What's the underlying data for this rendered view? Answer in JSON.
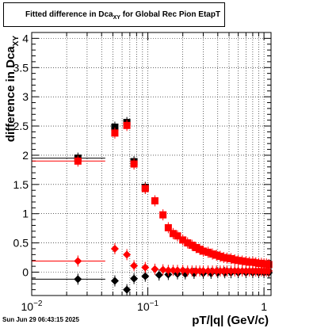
{
  "chart_data": {
    "type": "scatter",
    "title": "Fitted difference in Dca",
    "title_sub": "XY",
    "title_suffix": "for Global Rec Pion EtapT",
    "xlabel": "pT/|q| (GeV/c)",
    "ylabel": "difference in Dca",
    "ylabel_sub": "XY",
    "xscale": "log",
    "xlim": [
      0.01,
      1.15
    ],
    "ylim": [
      -0.4,
      4.1
    ],
    "grid": true,
    "yticks": [
      "0",
      "0.5",
      "1",
      "1.5",
      "2",
      "2.5",
      "3",
      "3.5",
      "4"
    ],
    "xticks": [
      {
        "base": "10",
        "exp": "−2"
      },
      {
        "base": "10",
        "exp": "−1"
      },
      {
        "base": "1",
        "exp": ""
      }
    ],
    "series": [
      {
        "color": "#000000",
        "marker": "square",
        "points": [
          {
            "x": 0.025,
            "y": 1.95,
            "xerr": [
              0.01,
              0.043
            ]
          },
          {
            "x": 0.052,
            "y": 2.48
          },
          {
            "x": 0.066,
            "y": 2.56
          },
          {
            "x": 0.076,
            "y": 1.89
          },
          {
            "x": 0.095,
            "y": 1.45
          }
        ]
      },
      {
        "color": "#ff0000",
        "marker": "square",
        "points": [
          {
            "x": 0.025,
            "y": 1.9,
            "xerr": [
              0.01,
              0.043
            ]
          },
          {
            "x": 0.052,
            "y": 2.38
          },
          {
            "x": 0.066,
            "y": 2.51
          },
          {
            "x": 0.076,
            "y": 1.85
          },
          {
            "x": 0.095,
            "y": 1.43
          },
          {
            "x": 0.115,
            "y": 1.22
          },
          {
            "x": 0.135,
            "y": 0.98
          },
          {
            "x": 0.15,
            "y": 0.76
          },
          {
            "x": 0.165,
            "y": 0.66
          },
          {
            "x": 0.18,
            "y": 0.62
          },
          {
            "x": 0.2,
            "y": 0.55
          },
          {
            "x": 0.22,
            "y": 0.5
          },
          {
            "x": 0.24,
            "y": 0.46
          },
          {
            "x": 0.26,
            "y": 0.42
          },
          {
            "x": 0.28,
            "y": 0.39
          },
          {
            "x": 0.3,
            "y": 0.36
          },
          {
            "x": 0.33,
            "y": 0.34
          },
          {
            "x": 0.36,
            "y": 0.31
          },
          {
            "x": 0.39,
            "y": 0.29
          },
          {
            "x": 0.42,
            "y": 0.27
          },
          {
            "x": 0.45,
            "y": 0.25
          },
          {
            "x": 0.48,
            "y": 0.24
          },
          {
            "x": 0.52,
            "y": 0.23
          },
          {
            "x": 0.56,
            "y": 0.21
          },
          {
            "x": 0.6,
            "y": 0.2
          },
          {
            "x": 0.65,
            "y": 0.19
          },
          {
            "x": 0.7,
            "y": 0.18
          },
          {
            "x": 0.75,
            "y": 0.17
          },
          {
            "x": 0.8,
            "y": 0.17
          },
          {
            "x": 0.85,
            "y": 0.16
          },
          {
            "x": 0.9,
            "y": 0.15
          },
          {
            "x": 0.95,
            "y": 0.15
          },
          {
            "x": 1.0,
            "y": 0.14
          },
          {
            "x": 1.05,
            "y": 0.14
          },
          {
            "x": 1.1,
            "y": 0.13
          }
        ]
      },
      {
        "color": "#000000",
        "marker": "diamond",
        "points": [
          {
            "x": 0.025,
            "y": -0.12,
            "xerr": [
              0.01,
              0.043
            ]
          },
          {
            "x": 0.052,
            "y": -0.15
          },
          {
            "x": 0.066,
            "y": -0.3
          },
          {
            "x": 0.076,
            "y": -0.11
          },
          {
            "x": 0.095,
            "y": -0.07
          },
          {
            "x": 0.125,
            "y": -0.05
          },
          {
            "x": 0.15,
            "y": -0.04
          },
          {
            "x": 0.18,
            "y": -0.03
          },
          {
            "x": 0.21,
            "y": -0.03
          },
          {
            "x": 0.25,
            "y": -0.02
          },
          {
            "x": 0.3,
            "y": -0.02
          },
          {
            "x": 0.35,
            "y": -0.02
          },
          {
            "x": 0.4,
            "y": -0.01
          },
          {
            "x": 0.46,
            "y": -0.01
          },
          {
            "x": 0.52,
            "y": -0.01
          },
          {
            "x": 0.6,
            "y": -0.01
          },
          {
            "x": 0.7,
            "y": -0.01
          },
          {
            "x": 0.8,
            "y": -0.01
          },
          {
            "x": 0.9,
            "y": -0.01
          },
          {
            "x": 1.0,
            "y": -0.01
          },
          {
            "x": 1.1,
            "y": -0.01
          }
        ]
      },
      {
        "color": "#ff0000",
        "marker": "diamond",
        "points": [
          {
            "x": 0.025,
            "y": 0.19,
            "xerr": [
              0.01,
              0.043
            ]
          },
          {
            "x": 0.052,
            "y": 0.4
          },
          {
            "x": 0.066,
            "y": 0.3
          },
          {
            "x": 0.076,
            "y": 0.11
          },
          {
            "x": 0.095,
            "y": 0.08
          },
          {
            "x": 0.115,
            "y": 0.05
          },
          {
            "x": 0.135,
            "y": 0.04
          },
          {
            "x": 0.15,
            "y": 0.03
          },
          {
            "x": 0.165,
            "y": 0.03
          },
          {
            "x": 0.18,
            "y": 0.03
          },
          {
            "x": 0.2,
            "y": 0.03
          },
          {
            "x": 0.22,
            "y": 0.02
          },
          {
            "x": 0.24,
            "y": 0.02
          },
          {
            "x": 0.26,
            "y": 0.02
          },
          {
            "x": 0.28,
            "y": 0.02
          },
          {
            "x": 0.3,
            "y": 0.02
          },
          {
            "x": 0.33,
            "y": 0.02
          },
          {
            "x": 0.36,
            "y": 0.02
          },
          {
            "x": 0.39,
            "y": 0.02
          },
          {
            "x": 0.42,
            "y": 0.02
          },
          {
            "x": 0.45,
            "y": 0.02
          },
          {
            "x": 0.48,
            "y": 0.02
          },
          {
            "x": 0.52,
            "y": 0.02
          },
          {
            "x": 0.56,
            "y": 0.02
          },
          {
            "x": 0.6,
            "y": 0.02
          },
          {
            "x": 0.65,
            "y": 0.02
          },
          {
            "x": 0.7,
            "y": 0.02
          },
          {
            "x": 0.75,
            "y": 0.02
          },
          {
            "x": 0.8,
            "y": 0.02
          },
          {
            "x": 0.85,
            "y": 0.02
          },
          {
            "x": 0.9,
            "y": 0.02
          },
          {
            "x": 0.95,
            "y": 0.02
          },
          {
            "x": 1.0,
            "y": 0.02
          },
          {
            "x": 1.05,
            "y": 0.02
          },
          {
            "x": 1.1,
            "y": 0.02
          }
        ]
      }
    ]
  },
  "footer": {
    "datestamp": "Sun Jun 29 06:43:15 2025"
  }
}
